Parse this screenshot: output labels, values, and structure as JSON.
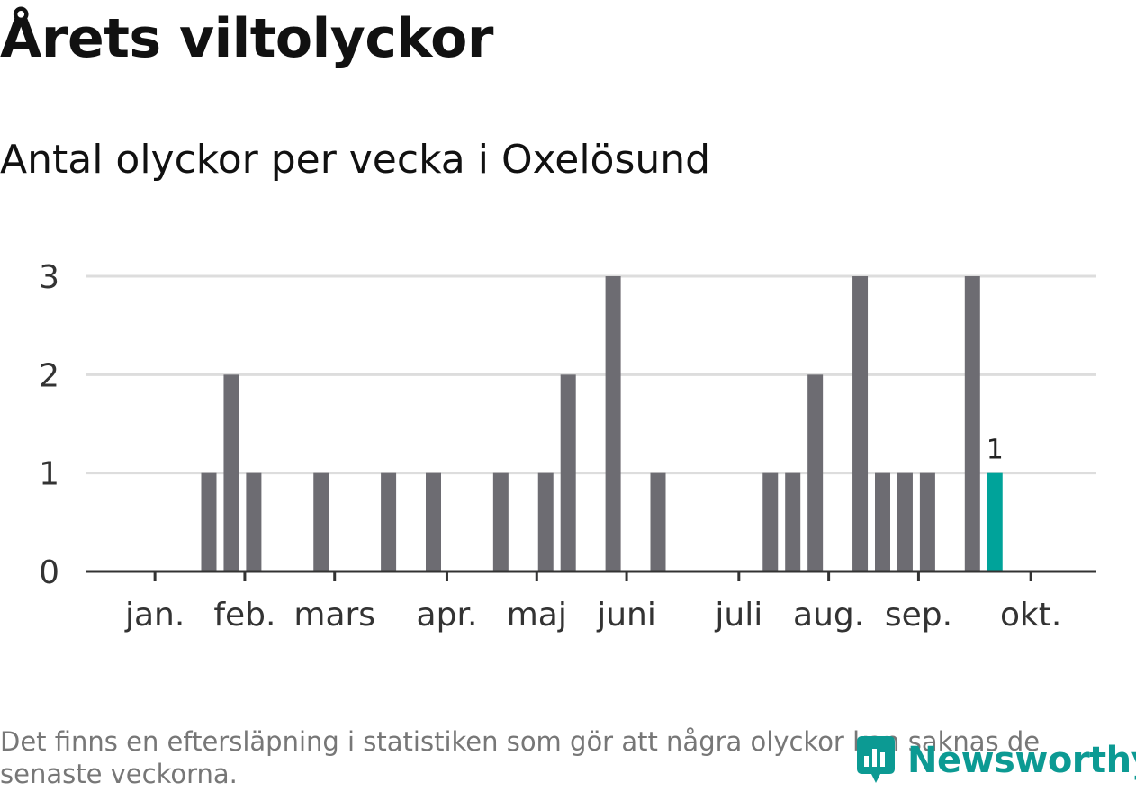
{
  "header": {
    "title": "Årets viltolyckor",
    "subtitle": "Antal olyckor per vecka i Oxelösund"
  },
  "footer": {
    "note": "Det finns en eftersläpning i statistiken som gör att några olyckor kan saknas de senaste veckorna.",
    "brand": "Newsworthy"
  },
  "colors": {
    "bar": "#6d6c72",
    "highlight": "#00a39a",
    "grid": "#dddddd",
    "axis": "#333333",
    "brand": "#0c9a93"
  },
  "chart_data": {
    "type": "bar",
    "title": "Antal olyckor per vecka i Oxelösund",
    "xlabel": "",
    "ylabel": "",
    "ylim": [
      0,
      3
    ],
    "yticks": [
      0,
      1,
      2,
      3
    ],
    "week_range": [
      1,
      43
    ],
    "series": [
      {
        "name": "Antal olyckor",
        "weeks": [
          4,
          5,
          6,
          9,
          12,
          14,
          17,
          19,
          20,
          22,
          24,
          29,
          30,
          31,
          33,
          34,
          35,
          36,
          38,
          39
        ],
        "values": [
          1,
          2,
          1,
          1,
          1,
          1,
          1,
          1,
          2,
          3,
          1,
          1,
          1,
          2,
          3,
          1,
          1,
          1,
          3,
          1
        ]
      }
    ],
    "highlight": {
      "week": 39,
      "value": 1,
      "label": "1"
    },
    "month_labels": [
      {
        "label": "jan.",
        "week": 1.6
      },
      {
        "label": "feb.",
        "week": 5.6
      },
      {
        "label": "mars",
        "week": 9.6
      },
      {
        "label": "apr.",
        "week": 14.6
      },
      {
        "label": "maj",
        "week": 18.6
      },
      {
        "label": "juni",
        "week": 22.6
      },
      {
        "label": "juli",
        "week": 27.6
      },
      {
        "label": "aug.",
        "week": 31.6
      },
      {
        "label": "sep.",
        "week": 35.6
      },
      {
        "label": "okt.",
        "week": 40.6
      }
    ],
    "legend": "none",
    "grid": true
  }
}
